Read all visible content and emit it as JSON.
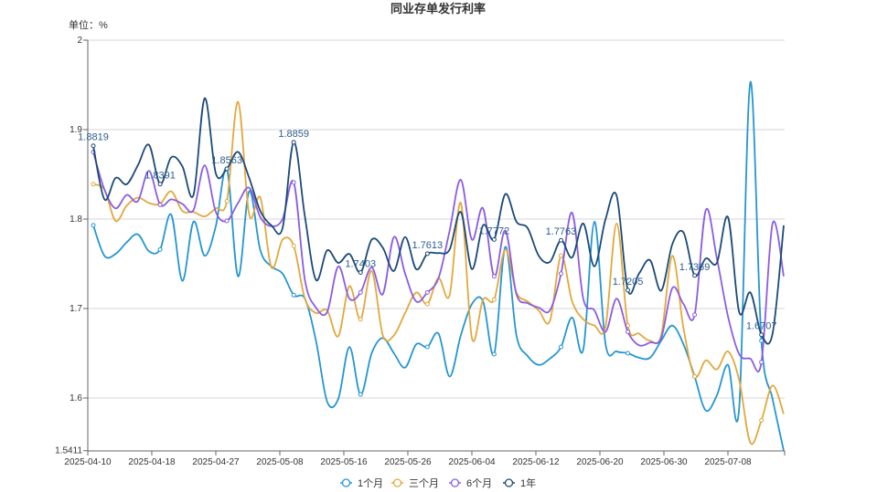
{
  "chart_data": {
    "type": "line",
    "title": "同业存单发行利率",
    "ylabel": "单位：%",
    "ylim": [
      1.5411,
      2
    ],
    "y_ticks": [
      "2",
      "1.9",
      "1.8",
      "1.7",
      "1.6",
      "1.5411"
    ],
    "x_tick_labels": [
      "2025-04-10",
      "2025-04-18",
      "2025-04-27",
      "2025-05-08",
      "2025-05-16",
      "2025-05-26",
      "2025-06-04",
      "2025-06-12",
      "2025-06-20",
      "2025-06-30",
      "2025-07-08"
    ],
    "grid": true,
    "smooth": true,
    "legend_position": "bottom",
    "series": [
      {
        "name": "1个月",
        "color": "#2596d1",
        "values": [
          1.793,
          1.759,
          1.761,
          1.774,
          1.783,
          1.764,
          1.766,
          1.805,
          1.731,
          1.797,
          1.759,
          1.792,
          1.856,
          1.736,
          1.831,
          1.765,
          1.747,
          1.739,
          1.715,
          1.711,
          1.664,
          1.596,
          1.599,
          1.657,
          1.604,
          1.65,
          1.667,
          1.65,
          1.634,
          1.66,
          1.657,
          1.672,
          1.624,
          1.67,
          1.705,
          1.708,
          1.649,
          1.769,
          1.67,
          1.647,
          1.637,
          1.644,
          1.657,
          1.69,
          1.654,
          1.797,
          1.66,
          1.652,
          1.65,
          1.645,
          1.645,
          1.664,
          1.681,
          1.66,
          1.624,
          1.586,
          1.603,
          1.637,
          1.589,
          1.953,
          1.664,
          1.599,
          1.541
        ]
      },
      {
        "name": "三个月",
        "color": "#e2a83d",
        "values": [
          1.839,
          1.833,
          1.798,
          1.815,
          1.824,
          1.818,
          1.817,
          1.831,
          1.809,
          1.808,
          1.803,
          1.812,
          1.82,
          1.931,
          1.805,
          1.824,
          1.746,
          1.777,
          1.77,
          1.711,
          1.695,
          1.698,
          1.669,
          1.725,
          1.688,
          1.742,
          1.67,
          1.67,
          1.695,
          1.718,
          1.705,
          1.734,
          1.715,
          1.818,
          1.667,
          1.71,
          1.71,
          1.766,
          1.718,
          1.708,
          1.698,
          1.686,
          1.759,
          1.708,
          1.688,
          1.681,
          1.68,
          1.795,
          1.681,
          1.672,
          1.664,
          1.67,
          1.759,
          1.678,
          1.624,
          1.642,
          1.632,
          1.652,
          1.62,
          1.55,
          1.575,
          1.614,
          1.582
        ]
      },
      {
        "name": "6个月",
        "color": "#8b5ce3",
        "values": [
          1.875,
          1.833,
          1.812,
          1.827,
          1.82,
          1.854,
          1.816,
          1.822,
          1.817,
          1.81,
          1.86,
          1.808,
          1.798,
          1.818,
          1.835,
          1.802,
          1.792,
          1.8,
          1.841,
          1.732,
          1.701,
          1.696,
          1.747,
          1.711,
          1.718,
          1.746,
          1.716,
          1.78,
          1.739,
          1.708,
          1.718,
          1.734,
          1.787,
          1.844,
          1.777,
          1.812,
          1.736,
          1.787,
          1.716,
          1.706,
          1.701,
          1.698,
          1.739,
          1.807,
          1.711,
          1.698,
          1.674,
          1.711,
          1.674,
          1.659,
          1.662,
          1.667,
          1.723,
          1.705,
          1.693,
          1.81,
          1.756,
          1.691,
          1.649,
          1.644,
          1.64,
          1.795,
          1.736
        ]
      },
      {
        "name": "1年",
        "color": "#1b4a78",
        "values": [
          1.8819,
          1.822,
          1.846,
          1.839,
          1.86,
          1.883,
          1.8391,
          1.869,
          1.859,
          1.827,
          1.935,
          1.851,
          1.8563,
          1.875,
          1.846,
          1.809,
          1.793,
          1.79,
          1.8859,
          1.803,
          1.732,
          1.765,
          1.751,
          1.761,
          1.7403,
          1.777,
          1.768,
          1.742,
          1.78,
          1.744,
          1.7613,
          1.762,
          1.766,
          1.808,
          1.744,
          1.793,
          1.7772,
          1.828,
          1.797,
          1.79,
          1.759,
          1.752,
          1.7763,
          1.757,
          1.795,
          1.747,
          1.8,
          1.826,
          1.7205,
          1.739,
          1.754,
          1.72,
          1.772,
          1.785,
          1.7369,
          1.756,
          1.751,
          1.802,
          1.696,
          1.718,
          1.6707,
          1.672,
          1.793
        ]
      }
    ],
    "data_labels": [
      "1.8819",
      "1.8391",
      "1.8563",
      "1.8859",
      "1.7403",
      "1.7613",
      "1.7772",
      "1.7763",
      "1.7205",
      "1.7369",
      "1.6707"
    ]
  }
}
